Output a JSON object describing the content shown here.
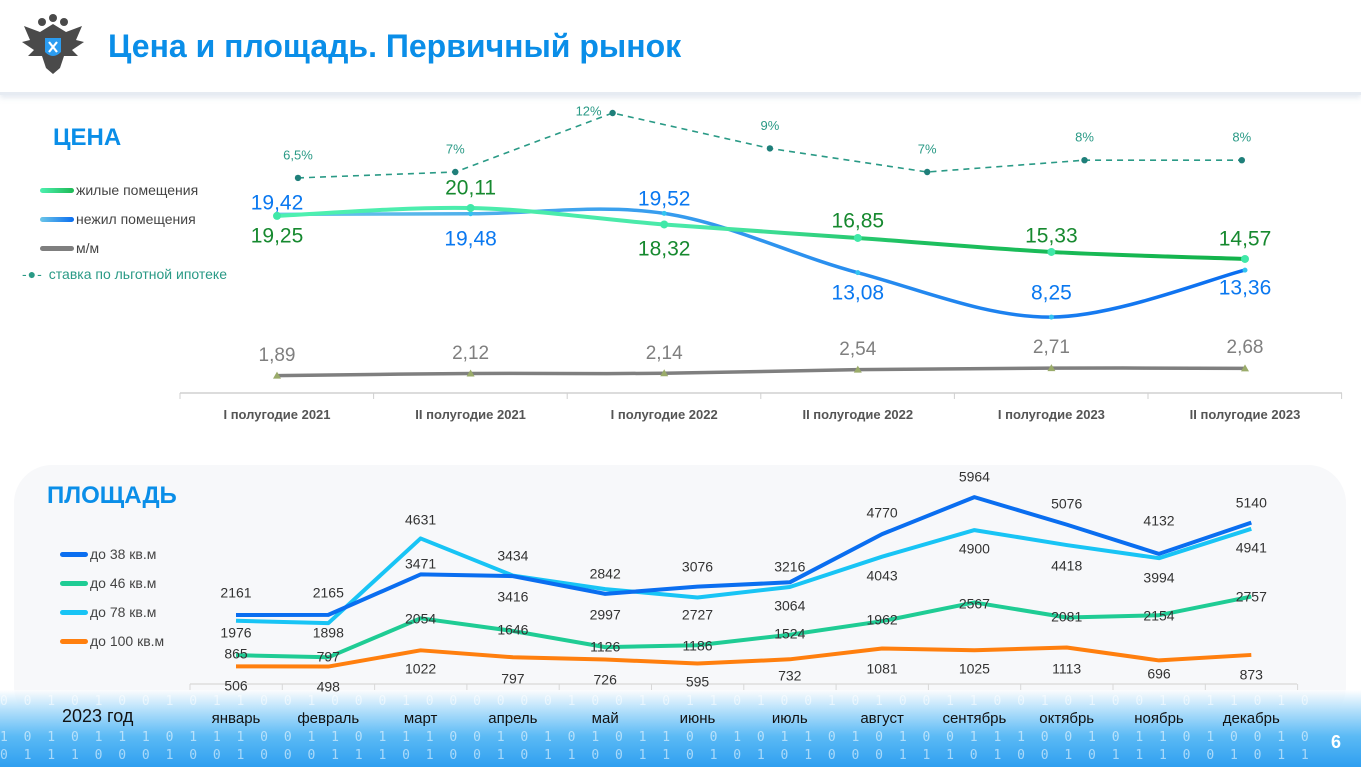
{
  "header": {
    "title": "Цена и площадь. Первичный рынок",
    "logo": "double-headed-eagle-emblem"
  },
  "page_number": "6",
  "colors": {
    "title": "#0a8ee8",
    "residential": "#1db954",
    "residential_light": "#4df0b0",
    "nonresidential": "#0a6ef0",
    "mm": "#7f7f7f",
    "rate": "#2a9a86",
    "area38": "#0a6ef0",
    "area46": "#1fcc94",
    "area78": "#18c4f5",
    "area100": "#ff7f0e"
  },
  "chart_data": [
    {
      "type": "line",
      "title": "ЦЕНА",
      "categories": [
        "I полугодие 2021",
        "II полугодие 2021",
        "I полугодие 2022",
        "II полугодие 2022",
        "I полугодие 2023",
        "II полугодие 2023"
      ],
      "series": [
        {
          "name": "жилые помещения",
          "values": [
            19.25,
            20.11,
            18.32,
            16.85,
            15.33,
            14.57
          ],
          "labels": [
            "19,25",
            "20,11",
            "18,32",
            "16,85",
            "15,33",
            "14,57"
          ]
        },
        {
          "name": "нежил помещения",
          "values": [
            19.42,
            19.48,
            19.52,
            13.08,
            8.25,
            13.36
          ],
          "labels": [
            "19,42",
            "19,48",
            "19,52",
            "13,08",
            "8,25",
            "13,36"
          ]
        },
        {
          "name": "м/м",
          "values": [
            1.89,
            2.12,
            2.14,
            2.54,
            2.71,
            2.68
          ],
          "labels": [
            "1,89",
            "2,12",
            "2,14",
            "2,54",
            "2,71",
            "2,68"
          ]
        }
      ],
      "rate_series": {
        "name": "ставка по льготной ипотеке",
        "values": [
          6.5,
          7,
          12,
          9,
          7,
          8,
          8
        ],
        "labels": [
          "6,5%",
          "7%",
          "12%",
          "9%",
          "7%",
          "8%",
          "8%"
        ]
      },
      "grid": false,
      "legend": "left"
    },
    {
      "type": "line",
      "title": "ПЛОЩАДЬ",
      "xlabel": "2023 год",
      "categories": [
        "январь",
        "февраль",
        "март",
        "апрель",
        "май",
        "июнь",
        "июль",
        "август",
        "сентябрь",
        "октябрь",
        "ноябрь",
        "декабрь"
      ],
      "series": [
        {
          "name": "до 38 кв.м",
          "values": [
            2161,
            2165,
            3471,
            3416,
            2842,
            3076,
            3216,
            4770,
            5964,
            5076,
            4132,
            5140
          ]
        },
        {
          "name": "до 46 кв.м",
          "values": [
            865,
            797,
            2054,
            1646,
            1126,
            1186,
            1524,
            1962,
            2567,
            2081,
            2154,
            2757
          ]
        },
        {
          "name": "до 78 кв.м",
          "values": [
            1976,
            1898,
            4631,
            3434,
            2997,
            2727,
            3064,
            4043,
            4900,
            4418,
            3994,
            4941
          ]
        },
        {
          "name": "до 100 кв.м",
          "values": [
            506,
            498,
            1022,
            797,
            726,
            595,
            732,
            1081,
            1025,
            1113,
            696,
            873
          ]
        }
      ],
      "grid": false,
      "legend": "left"
    }
  ]
}
